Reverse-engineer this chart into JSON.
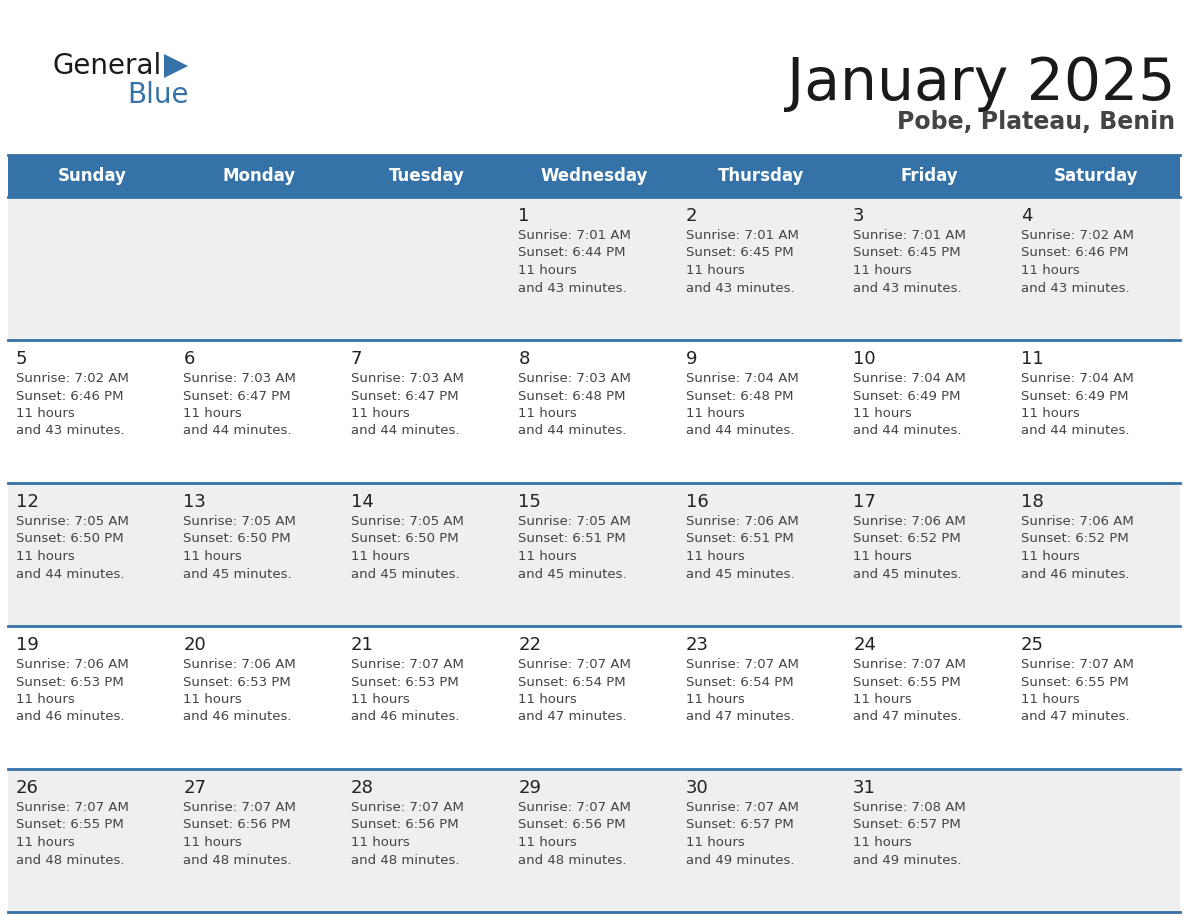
{
  "title": "January 2025",
  "subtitle": "Pobe, Plateau, Benin",
  "days_of_week": [
    "Sunday",
    "Monday",
    "Tuesday",
    "Wednesday",
    "Thursday",
    "Friday",
    "Saturday"
  ],
  "header_bg": "#3572A8",
  "header_text": "#FFFFFF",
  "row_bg_odd": "#EFEFEF",
  "row_bg_even": "#FFFFFF",
  "cell_text": "#444444",
  "day_num_color": "#222222",
  "grid_line_color": "#3572A8",
  "logo_general_color": "#1a1a1a",
  "logo_blue_color": "#3572A8",
  "calendar_data": [
    [
      null,
      null,
      null,
      {
        "day": 1,
        "sunrise": "7:01 AM",
        "sunset": "6:44 PM",
        "daylight": "11 hours and 43 minutes."
      },
      {
        "day": 2,
        "sunrise": "7:01 AM",
        "sunset": "6:45 PM",
        "daylight": "11 hours and 43 minutes."
      },
      {
        "day": 3,
        "sunrise": "7:01 AM",
        "sunset": "6:45 PM",
        "daylight": "11 hours and 43 minutes."
      },
      {
        "day": 4,
        "sunrise": "7:02 AM",
        "sunset": "6:46 PM",
        "daylight": "11 hours and 43 minutes."
      }
    ],
    [
      {
        "day": 5,
        "sunrise": "7:02 AM",
        "sunset": "6:46 PM",
        "daylight": "11 hours and 43 minutes."
      },
      {
        "day": 6,
        "sunrise": "7:03 AM",
        "sunset": "6:47 PM",
        "daylight": "11 hours and 44 minutes."
      },
      {
        "day": 7,
        "sunrise": "7:03 AM",
        "sunset": "6:47 PM",
        "daylight": "11 hours and 44 minutes."
      },
      {
        "day": 8,
        "sunrise": "7:03 AM",
        "sunset": "6:48 PM",
        "daylight": "11 hours and 44 minutes."
      },
      {
        "day": 9,
        "sunrise": "7:04 AM",
        "sunset": "6:48 PM",
        "daylight": "11 hours and 44 minutes."
      },
      {
        "day": 10,
        "sunrise": "7:04 AM",
        "sunset": "6:49 PM",
        "daylight": "11 hours and 44 minutes."
      },
      {
        "day": 11,
        "sunrise": "7:04 AM",
        "sunset": "6:49 PM",
        "daylight": "11 hours and 44 minutes."
      }
    ],
    [
      {
        "day": 12,
        "sunrise": "7:05 AM",
        "sunset": "6:50 PM",
        "daylight": "11 hours and 44 minutes."
      },
      {
        "day": 13,
        "sunrise": "7:05 AM",
        "sunset": "6:50 PM",
        "daylight": "11 hours and 45 minutes."
      },
      {
        "day": 14,
        "sunrise": "7:05 AM",
        "sunset": "6:50 PM",
        "daylight": "11 hours and 45 minutes."
      },
      {
        "day": 15,
        "sunrise": "7:05 AM",
        "sunset": "6:51 PM",
        "daylight": "11 hours and 45 minutes."
      },
      {
        "day": 16,
        "sunrise": "7:06 AM",
        "sunset": "6:51 PM",
        "daylight": "11 hours and 45 minutes."
      },
      {
        "day": 17,
        "sunrise": "7:06 AM",
        "sunset": "6:52 PM",
        "daylight": "11 hours and 45 minutes."
      },
      {
        "day": 18,
        "sunrise": "7:06 AM",
        "sunset": "6:52 PM",
        "daylight": "11 hours and 46 minutes."
      }
    ],
    [
      {
        "day": 19,
        "sunrise": "7:06 AM",
        "sunset": "6:53 PM",
        "daylight": "11 hours and 46 minutes."
      },
      {
        "day": 20,
        "sunrise": "7:06 AM",
        "sunset": "6:53 PM",
        "daylight": "11 hours and 46 minutes."
      },
      {
        "day": 21,
        "sunrise": "7:07 AM",
        "sunset": "6:53 PM",
        "daylight": "11 hours and 46 minutes."
      },
      {
        "day": 22,
        "sunrise": "7:07 AM",
        "sunset": "6:54 PM",
        "daylight": "11 hours and 47 minutes."
      },
      {
        "day": 23,
        "sunrise": "7:07 AM",
        "sunset": "6:54 PM",
        "daylight": "11 hours and 47 minutes."
      },
      {
        "day": 24,
        "sunrise": "7:07 AM",
        "sunset": "6:55 PM",
        "daylight": "11 hours and 47 minutes."
      },
      {
        "day": 25,
        "sunrise": "7:07 AM",
        "sunset": "6:55 PM",
        "daylight": "11 hours and 47 minutes."
      }
    ],
    [
      {
        "day": 26,
        "sunrise": "7:07 AM",
        "sunset": "6:55 PM",
        "daylight": "11 hours and 48 minutes."
      },
      {
        "day": 27,
        "sunrise": "7:07 AM",
        "sunset": "6:56 PM",
        "daylight": "11 hours and 48 minutes."
      },
      {
        "day": 28,
        "sunrise": "7:07 AM",
        "sunset": "6:56 PM",
        "daylight": "11 hours and 48 minutes."
      },
      {
        "day": 29,
        "sunrise": "7:07 AM",
        "sunset": "6:56 PM",
        "daylight": "11 hours and 48 minutes."
      },
      {
        "day": 30,
        "sunrise": "7:07 AM",
        "sunset": "6:57 PM",
        "daylight": "11 hours and 49 minutes."
      },
      {
        "day": 31,
        "sunrise": "7:08 AM",
        "sunset": "6:57 PM",
        "daylight": "11 hours and 49 minutes."
      },
      null
    ]
  ]
}
